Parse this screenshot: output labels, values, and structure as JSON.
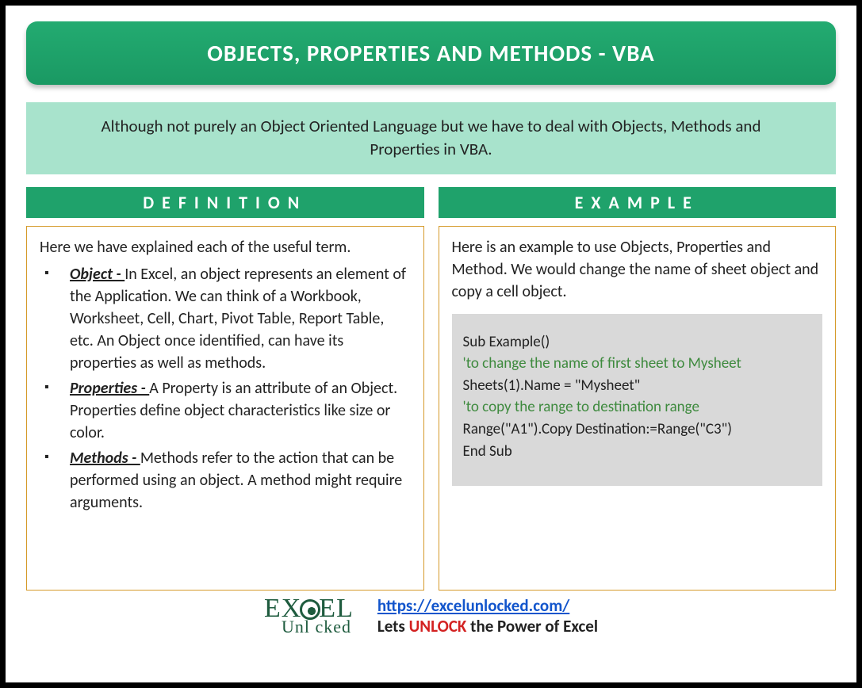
{
  "colors": {
    "header_bg": "#1fa26b",
    "intro_bg": "#a8e3cc",
    "border_orange": "#d59a2a",
    "code_bg": "#d9d9d9",
    "comment_green": "#3e8a3e",
    "link_blue": "#1255cc",
    "unlock_red": "#d32121",
    "logo_green": "#1e5b3e"
  },
  "title": "OBJECTS, PROPERTIES AND METHODS - VBA",
  "intro": "Although not purely an Object Oriented Language but we have to deal with Objects, Methods and Properties in VBA.",
  "definition": {
    "header": "DEFINITION",
    "intro": "Here we have explained each of the useful term.",
    "items": [
      {
        "term": "Object - ",
        "text": "In Excel, an object represents an element of the Application. We can think of a Workbook, Worksheet, Cell, Chart, Pivot Table, Report Table, etc. An Object once identified, can have its properties as well as methods."
      },
      {
        "term": "Properties - ",
        "text": "A Property is an attribute of an Object. Properties define object characteristics like size or color."
      },
      {
        "term": "Methods - ",
        "text": "Methods refer to the action that can be performed using an object. A method might require arguments."
      }
    ]
  },
  "example": {
    "header": "EXAMPLE",
    "intro": "Here is an example to use Objects, Properties and Method. We would change the name of sheet object and copy a cell object.",
    "code": {
      "line1": "Sub Example()",
      "comment1": "'to change the name of first sheet to Mysheet",
      "line2": "Sheets(1).Name = \"Mysheet\"",
      "comment2": "'to copy the range to destination range",
      "line3": "Range(\"A1\").Copy Destination:=Range(\"C3\")",
      "line4": "End Sub"
    }
  },
  "footer": {
    "logo_top_left": "EX",
    "logo_top_right": "EL",
    "logo_bottom": "Unl   cked",
    "url": "https://excelunlocked.com/",
    "tag_pre": "Lets ",
    "tag_highlight": "UNLOCK",
    "tag_post": " the Power of Excel"
  }
}
